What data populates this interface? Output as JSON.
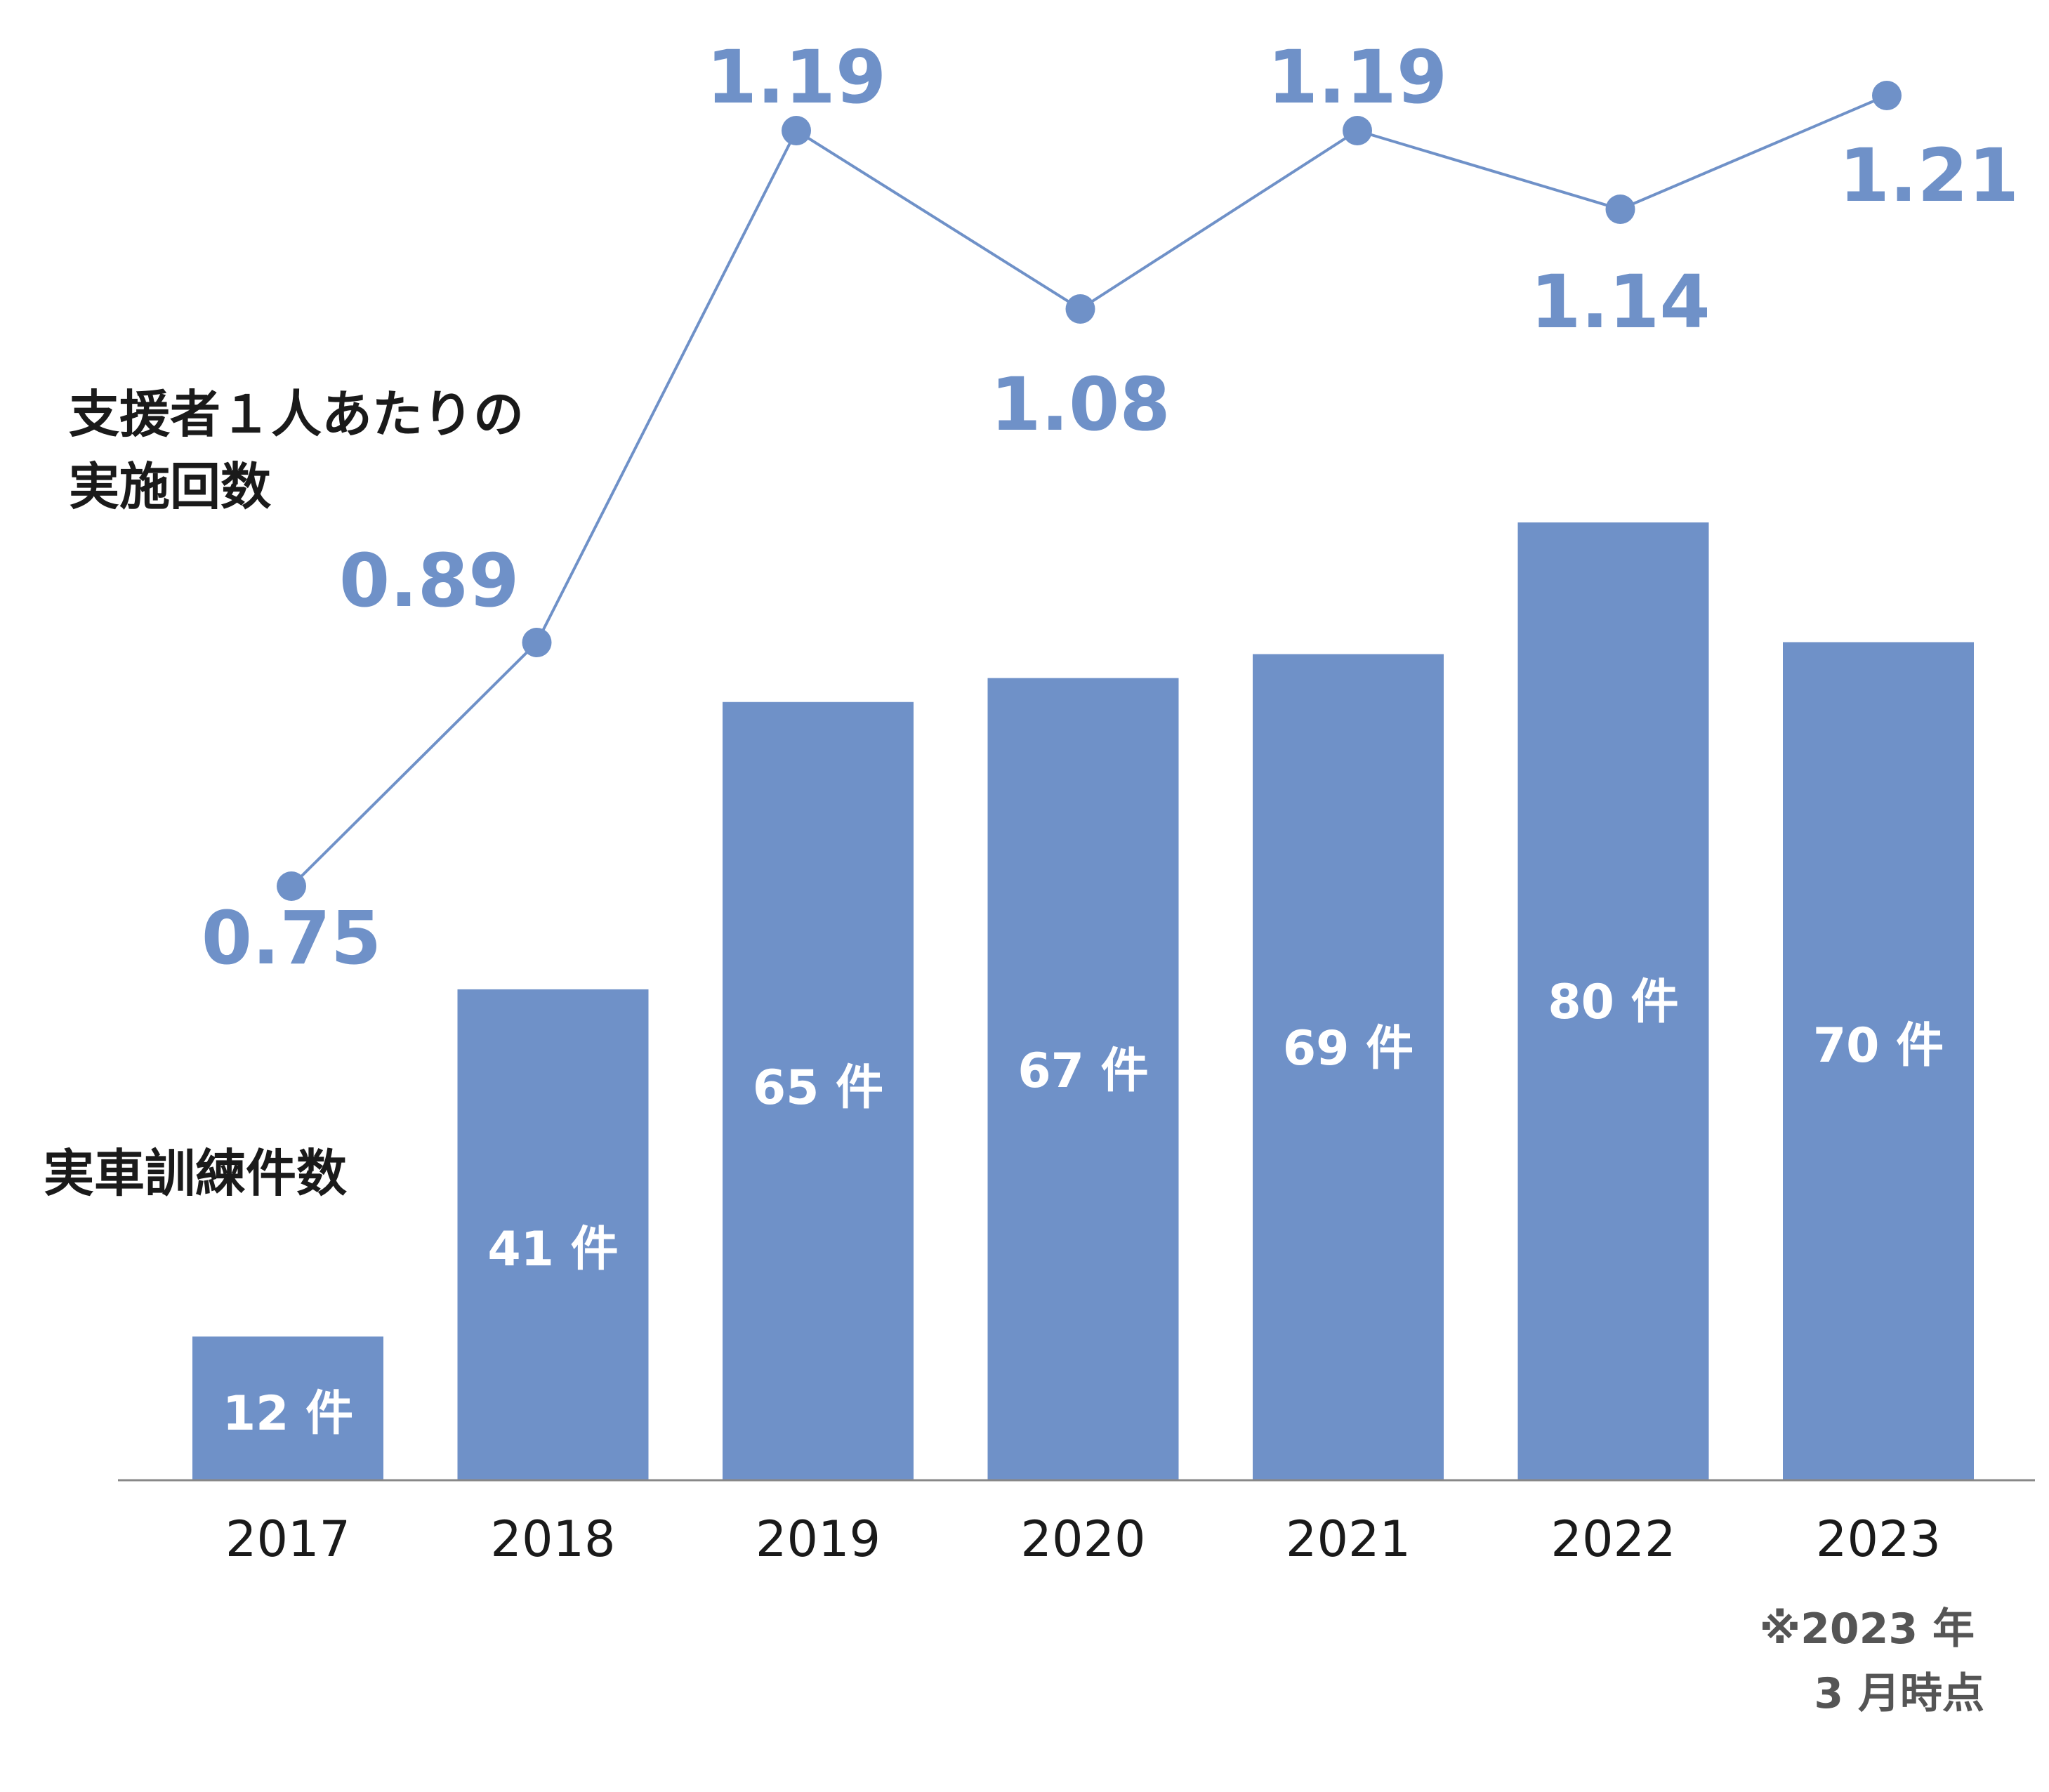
{
  "chart_data": {
    "type": "bar+line",
    "categories": [
      "2017",
      "2018",
      "2019",
      "2020",
      "2021",
      "2022",
      "2023"
    ],
    "bars": {
      "name": "実車訓練件数",
      "values": [
        12,
        41,
        65,
        67,
        69,
        80,
        70
      ],
      "unit": "件",
      "labels": [
        "12 件",
        "41 件",
        "65 件",
        "67 件",
        "69 件",
        "80 件",
        "70 件"
      ]
    },
    "line": {
      "name_line1": "支援者１人あたりの",
      "name_line2": "実施回数",
      "values": [
        0.75,
        0.89,
        1.19,
        1.08,
        1.19,
        1.14,
        1.21
      ],
      "labels": [
        "0.75",
        "0.89",
        "1.19",
        "1.08",
        "1.19",
        "1.14",
        "1.21"
      ]
    },
    "note_line1": "※2023 年",
    "note_line2": "3 月時点",
    "colors": {
      "bar": "#6f91c8",
      "line": "#6f91c8",
      "text": "#1a1a1a",
      "note": "#555555"
    },
    "grid": false
  }
}
